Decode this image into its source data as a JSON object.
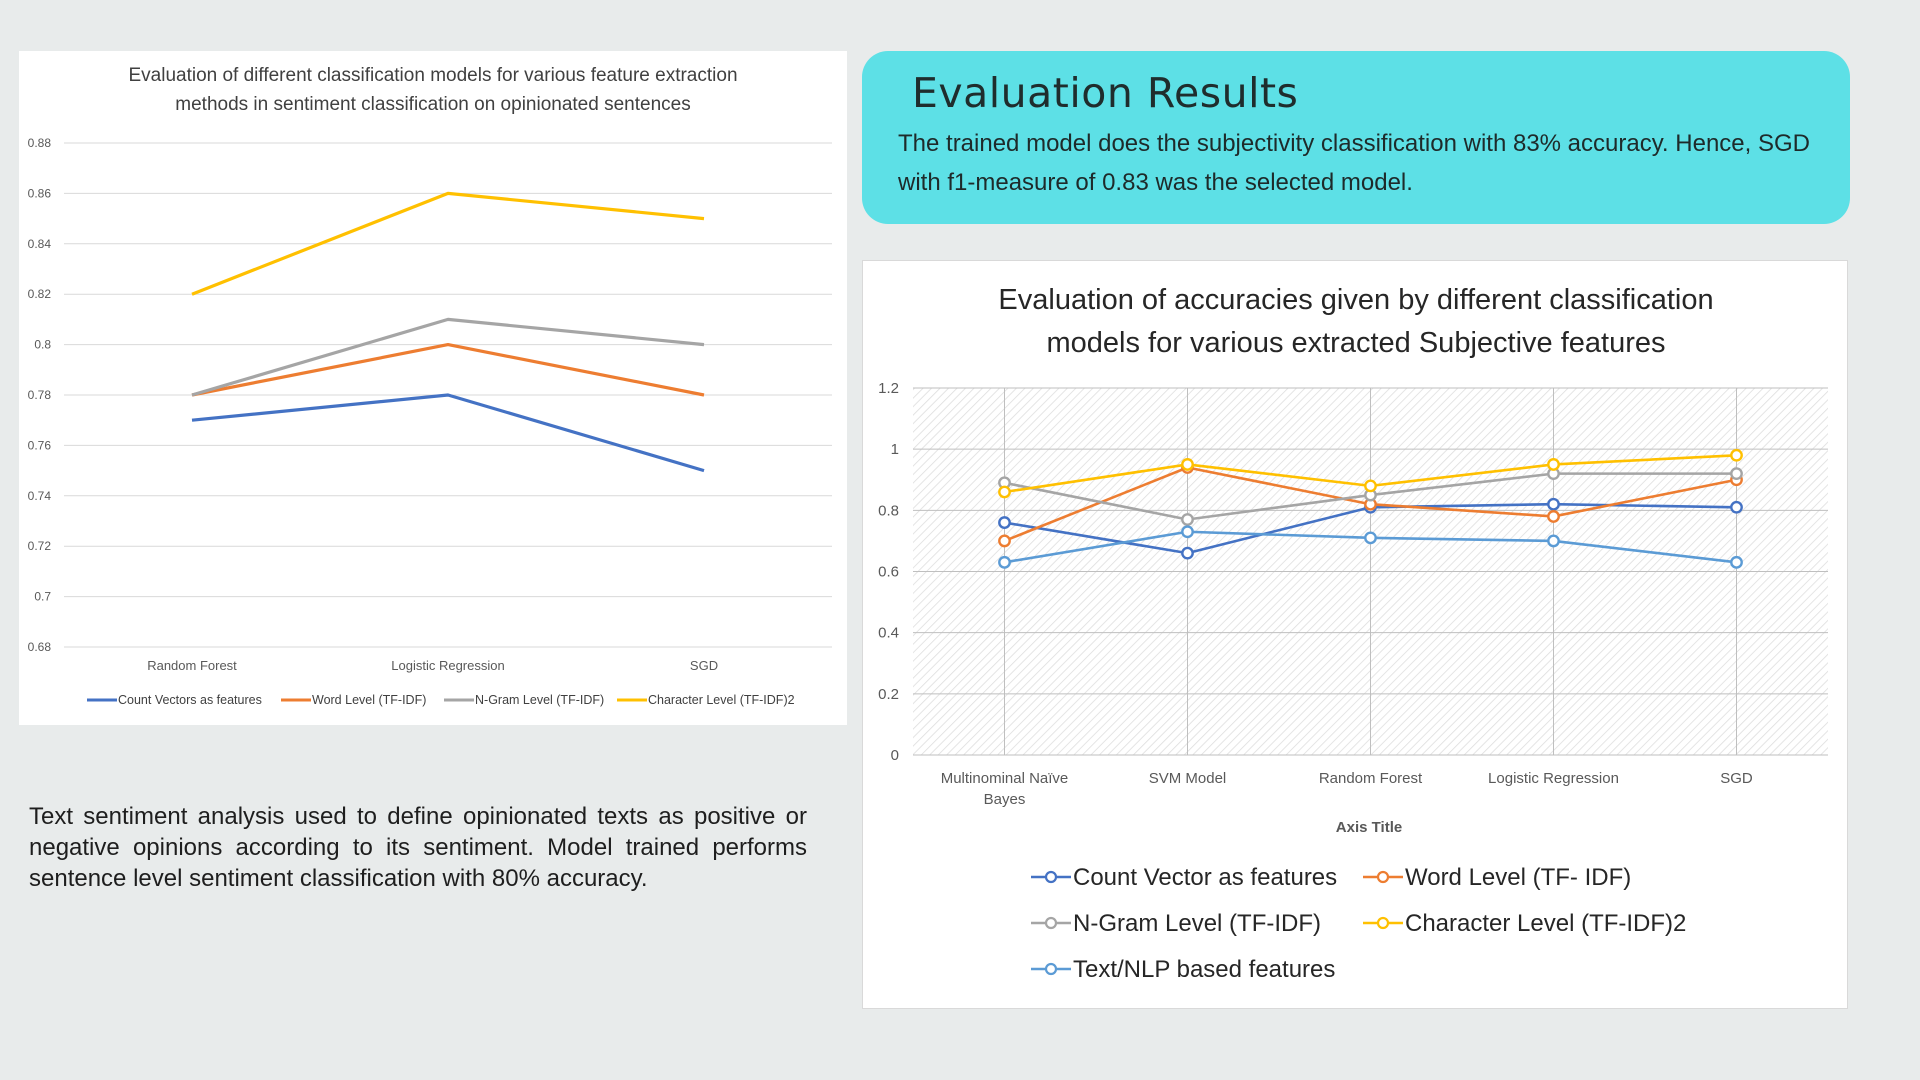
{
  "results": {
    "title": "Evaluation Results",
    "body": "The trained model does the subjectivity classification with 83% accuracy. Hence, SGD with f1-measure of 0.83 was the selected model."
  },
  "sentiment_text": "Text sentiment analysis used to define opinionated texts as positive or negative opinions according to its sentiment. Model trained performs sentence level sentiment classification with 80% accuracy.",
  "colors": {
    "count": "#4472c4",
    "word": "#ed7d31",
    "ngram": "#a5a5a5",
    "character": "#ffc000",
    "textnlp": "#5b9bd5"
  },
  "chart_data": [
    {
      "type": "line",
      "title_lines": [
        "Evaluation of different classification models for various feature extraction",
        "methods in sentiment classification on opinionated sentences"
      ],
      "categories": [
        "Random Forest",
        "Logistic Regression",
        "SGD"
      ],
      "ylim": [
        0.68,
        0.88
      ],
      "yticks": [
        "0.68",
        "0.7",
        "0.72",
        "0.74",
        "0.76",
        "0.78",
        "0.8",
        "0.82",
        "0.84",
        "0.86",
        "0.88"
      ],
      "grid": true,
      "legend_position": "bottom",
      "markers": false,
      "series": [
        {
          "name": "Count Vectors as features",
          "color": "#4472c4",
          "values": [
            0.77,
            0.78,
            0.75
          ]
        },
        {
          "name": "Word Level (TF-IDF)",
          "color": "#ed7d31",
          "values": [
            0.78,
            0.8,
            0.78
          ]
        },
        {
          "name": "N-Gram Level (TF-IDF)",
          "color": "#a5a5a5",
          "values": [
            0.78,
            0.81,
            0.8
          ]
        },
        {
          "name": "Character Level (TF-IDF)2",
          "color": "#ffc000",
          "values": [
            0.82,
            0.86,
            0.85
          ]
        }
      ]
    },
    {
      "type": "line",
      "title_lines": [
        "Evaluation of accuracies given by different classification",
        "models for various extracted Subjective features"
      ],
      "categories": [
        [
          "Multinominal Naïve",
          "Bayes"
        ],
        [
          "SVM Model"
        ],
        [
          "Random Forest"
        ],
        [
          "Logistic Regression"
        ],
        [
          "SGD"
        ]
      ],
      "xlabel": "Axis Title",
      "ylim": [
        0,
        1.2
      ],
      "yticks": [
        "0",
        "0.2",
        "0.4",
        "0.6",
        "0.8",
        "1",
        "1.2"
      ],
      "grid": true,
      "legend_position": "bottom",
      "markers": true,
      "series": [
        {
          "name": "Count Vector as features",
          "color": "#4472c4",
          "values": [
            0.76,
            0.66,
            0.81,
            0.82,
            0.81
          ]
        },
        {
          "name": "Word Level (TF- IDF)",
          "color": "#ed7d31",
          "values": [
            0.7,
            0.94,
            0.82,
            0.78,
            0.9
          ]
        },
        {
          "name": "N-Gram Level (TF-IDF)",
          "color": "#a5a5a5",
          "values": [
            0.89,
            0.77,
            0.85,
            0.92,
            0.92
          ]
        },
        {
          "name": "Character Level (TF-IDF)2",
          "color": "#ffc000",
          "values": [
            0.86,
            0.95,
            0.88,
            0.95,
            0.98
          ]
        },
        {
          "name": "Text/NLP based features",
          "color": "#5b9bd5",
          "values": [
            0.63,
            0.73,
            0.71,
            0.7,
            0.63
          ]
        }
      ]
    }
  ]
}
